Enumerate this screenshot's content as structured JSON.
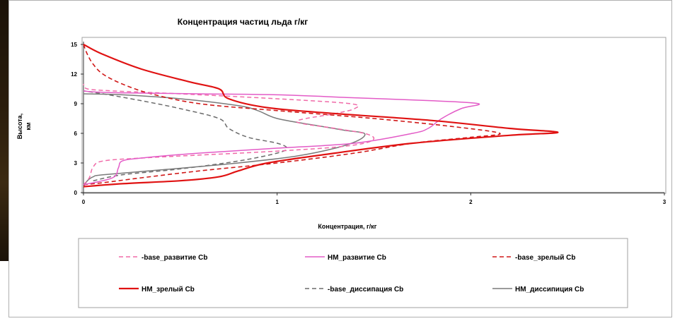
{
  "chart_data": {
    "type": "line",
    "title": "Концентрация частиц льда г/кг",
    "xlabel": "Концентрация, г/кг",
    "ylabel_line1": "Высота,",
    "ylabel_line2": "км",
    "xlim": [
      0,
      3
    ],
    "ylim": [
      0,
      15
    ],
    "xticks": [
      "0",
      "1",
      "2",
      "3"
    ],
    "yticks": [
      "0",
      "3",
      "6",
      "9",
      "12",
      "15"
    ],
    "grid": false,
    "legend_position": "bottom",
    "series": [
      {
        "name": "-base_развитие Cb",
        "color": "#f06aa8",
        "dash": "6,4",
        "width": 1.5,
        "points": [
          [
            0.0,
            0.8
          ],
          [
            0.03,
            1.5
          ],
          [
            0.05,
            2.6
          ],
          [
            0.1,
            3.2
          ],
          [
            0.3,
            3.5
          ],
          [
            0.6,
            3.8
          ],
          [
            1.0,
            4.2
          ],
          [
            1.3,
            4.6
          ],
          [
            1.45,
            5.0
          ],
          [
            1.5,
            5.5
          ],
          [
            1.45,
            6.0
          ],
          [
            1.3,
            6.5
          ],
          [
            1.1,
            7.2
          ],
          [
            1.3,
            8.0
          ],
          [
            1.4,
            8.5
          ],
          [
            1.38,
            9.0
          ],
          [
            1.0,
            9.5
          ],
          [
            0.5,
            10.0
          ],
          [
            0.15,
            10.3
          ],
          [
            0.02,
            10.5
          ],
          [
            0.0,
            11.0
          ]
        ]
      },
      {
        "name": "HM_развитие Cb",
        "color": "#e35bc7",
        "dash": "",
        "width": 1.5,
        "points": [
          [
            0.0,
            0.8
          ],
          [
            0.15,
            1.5
          ],
          [
            0.18,
            2.5
          ],
          [
            0.2,
            3.2
          ],
          [
            0.3,
            3.5
          ],
          [
            0.6,
            4.0
          ],
          [
            1.0,
            4.5
          ],
          [
            1.4,
            5.0
          ],
          [
            1.7,
            6.0
          ],
          [
            1.78,
            6.5
          ],
          [
            1.85,
            7.5
          ],
          [
            1.95,
            8.5
          ],
          [
            2.04,
            9.0
          ],
          [
            1.8,
            9.3
          ],
          [
            1.4,
            9.6
          ],
          [
            1.0,
            9.9
          ],
          [
            0.6,
            10.0
          ],
          [
            0.2,
            10.1
          ],
          [
            0.05,
            10.2
          ],
          [
            0.0,
            10.3
          ]
        ]
      },
      {
        "name": "-base_зрелый Cb",
        "color": "#d01818",
        "dash": "6,4",
        "width": 1.6,
        "points": [
          [
            0.0,
            0.8
          ],
          [
            0.1,
            1.0
          ],
          [
            0.3,
            1.5
          ],
          [
            0.6,
            2.2
          ],
          [
            1.0,
            3.0
          ],
          [
            1.4,
            4.0
          ],
          [
            1.7,
            5.0
          ],
          [
            2.0,
            5.6
          ],
          [
            2.15,
            6.0
          ],
          [
            1.9,
            6.7
          ],
          [
            1.5,
            7.5
          ],
          [
            1.0,
            8.3
          ],
          [
            0.6,
            9.0
          ],
          [
            0.35,
            10.0
          ],
          [
            0.2,
            11.0
          ],
          [
            0.1,
            12.0
          ],
          [
            0.05,
            13.0
          ],
          [
            0.02,
            14.0
          ],
          [
            0.0,
            15.0
          ]
        ]
      },
      {
        "name": "HM_зрелый Cb",
        "color": "#e01212",
        "dash": "",
        "width": 2.2,
        "points": [
          [
            0.0,
            0.6
          ],
          [
            0.2,
            0.9
          ],
          [
            0.5,
            1.2
          ],
          [
            0.7,
            1.6
          ],
          [
            0.8,
            2.2
          ],
          [
            0.95,
            3.0
          ],
          [
            1.3,
            4.0
          ],
          [
            1.7,
            5.0
          ],
          [
            2.2,
            5.8
          ],
          [
            2.45,
            6.1
          ],
          [
            2.2,
            6.5
          ],
          [
            1.8,
            7.3
          ],
          [
            1.3,
            8.0
          ],
          [
            0.95,
            8.6
          ],
          [
            0.75,
            9.5
          ],
          [
            0.7,
            10.5
          ],
          [
            0.55,
            11.2
          ],
          [
            0.3,
            12.5
          ],
          [
            0.1,
            14.0
          ],
          [
            0.0,
            15.0
          ]
        ]
      },
      {
        "name": "-base_диссипация Cb",
        "color": "#6b6b6b",
        "dash": "6,4",
        "width": 1.5,
        "points": [
          [
            0.05,
            1.2
          ],
          [
            0.2,
            1.8
          ],
          [
            0.5,
            2.4
          ],
          [
            0.8,
            3.2
          ],
          [
            1.0,
            4.0
          ],
          [
            1.05,
            4.5
          ],
          [
            1.0,
            5.0
          ],
          [
            0.85,
            5.6
          ],
          [
            0.75,
            6.5
          ],
          [
            0.7,
            7.5
          ],
          [
            0.5,
            8.5
          ],
          [
            0.3,
            9.3
          ],
          [
            0.1,
            10.0
          ],
          [
            0.0,
            10.3
          ]
        ]
      },
      {
        "name": "HM_диссипиция Cb",
        "color": "#7a7a7a",
        "dash": "",
        "width": 1.5,
        "points": [
          [
            0.0,
            0.6
          ],
          [
            0.02,
            1.2
          ],
          [
            0.05,
            1.6
          ],
          [
            0.1,
            1.8
          ],
          [
            0.4,
            2.3
          ],
          [
            0.8,
            3.0
          ],
          [
            1.1,
            3.7
          ],
          [
            1.3,
            4.5
          ],
          [
            1.42,
            5.3
          ],
          [
            1.45,
            6.0
          ],
          [
            1.35,
            6.3
          ],
          [
            1.2,
            6.8
          ],
          [
            1.0,
            7.5
          ],
          [
            0.9,
            8.3
          ],
          [
            0.8,
            8.8
          ],
          [
            0.5,
            9.5
          ],
          [
            0.2,
            9.9
          ],
          [
            0.0,
            10.0
          ]
        ]
      }
    ]
  }
}
